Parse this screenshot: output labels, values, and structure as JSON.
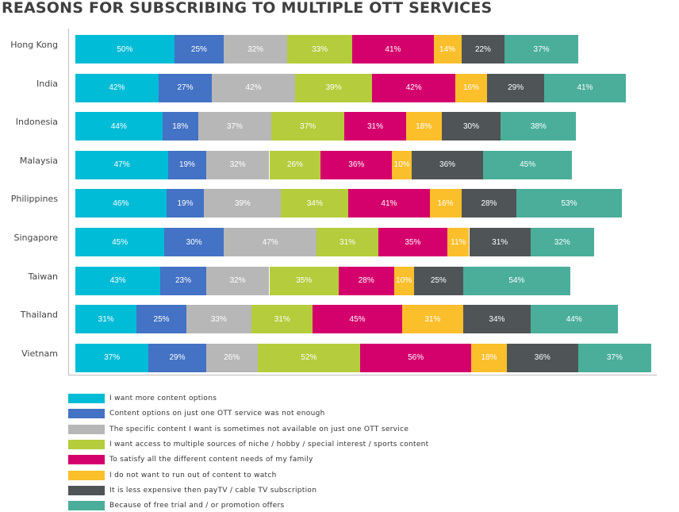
{
  "chart_data": {
    "type": "bar",
    "orientation": "horizontal",
    "stacked": true,
    "title": "REASONS FOR SUBSCRIBING TO MULTIPLE OTT SERVICES",
    "categories": [
      "Hong Kong",
      "India",
      "Indonesia",
      "Malaysia",
      "Philippines",
      "Singapore",
      "Taiwan",
      "Thailand",
      "Vietnam"
    ],
    "series": [
      {
        "name": "I want more content options",
        "color": "#00bcd6",
        "values": [
          50,
          42,
          44,
          47,
          46,
          45,
          43,
          31,
          37
        ]
      },
      {
        "name": "Content options on just one OTT service was not enough",
        "color": "#4472c4",
        "values": [
          25,
          27,
          18,
          19,
          19,
          30,
          23,
          25,
          29
        ]
      },
      {
        "name": "The specific content I want is sometimes not available on just one OTT service",
        "color": "#b7b7b7",
        "values": [
          32,
          42,
          37,
          32,
          39,
          47,
          32,
          33,
          26
        ]
      },
      {
        "name": "I want access to multiple sources of niche / hobby / special interest / sports content",
        "color": "#b5cc3c",
        "values": [
          33,
          39,
          37,
          26,
          34,
          31,
          35,
          31,
          52
        ]
      },
      {
        "name": "To satisfy all the different content needs of my family",
        "color": "#d4006c",
        "values": [
          41,
          42,
          31,
          36,
          41,
          35,
          28,
          45,
          56
        ]
      },
      {
        "name": "I do not want to run out of content to watch",
        "color": "#fbbf2c",
        "values": [
          14,
          16,
          18,
          10,
          16,
          11,
          10,
          31,
          18
        ]
      },
      {
        "name": "It is less expensive then payTV / cable TV subscription",
        "color": "#4f5457",
        "values": [
          22,
          29,
          30,
          36,
          28,
          31,
          25,
          34,
          36
        ]
      },
      {
        "name": "Because of free trial and / or promotion offers",
        "color": "#4aae9b",
        "values": [
          37,
          41,
          38,
          45,
          53,
          32,
          54,
          44,
          37
        ]
      }
    ],
    "value_suffix": "%",
    "legend_position": "bottom"
  }
}
